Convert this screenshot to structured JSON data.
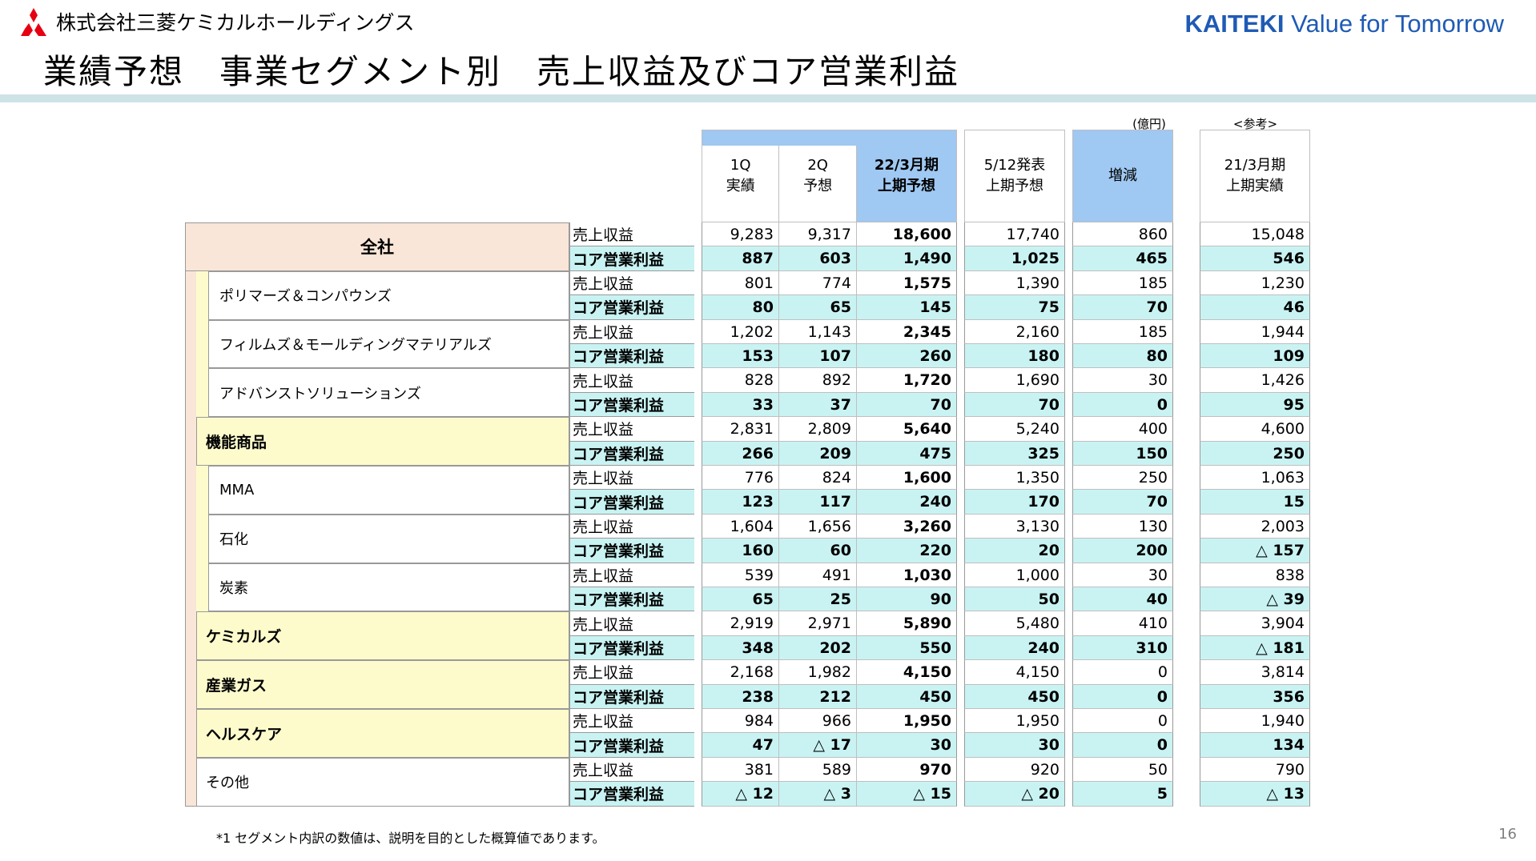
{
  "header": {
    "company": "株式会社三菱ケミカルホールディングス",
    "brand_bold": "KAITEKI",
    "brand_rest": " Value for Tomorrow",
    "title": "業績予想　事業セグメント別　売上収益及びコア営業利益"
  },
  "table": {
    "unit_note": "(億円)",
    "reference_note": "<参考>",
    "columns": [
      {
        "line1": "1Q",
        "line2": "実績"
      },
      {
        "line1": "2Q",
        "line2": "予想"
      },
      {
        "line1": "22/3月期",
        "line2": "上期予想"
      },
      {
        "line1": "5/12発表",
        "line2": "上期予想"
      },
      {
        "line1": "増減",
        "line2": ""
      },
      {
        "line1": "21/3月期",
        "line2": "上期実績"
      }
    ],
    "row_labels": {
      "revenue": "売上収益",
      "core": "コア営業利益"
    },
    "segments": [
      {
        "name": "全社",
        "revenue": [
          "9,283",
          "9,317",
          "18,600",
          "17,740",
          "860",
          "15,048"
        ],
        "core": [
          "887",
          "603",
          "1,490",
          "1,025",
          "465",
          "546"
        ]
      },
      {
        "name": "ポリマーズ＆コンパウンズ",
        "revenue": [
          "801",
          "774",
          "1,575",
          "1,390",
          "185",
          "1,230"
        ],
        "core": [
          "80",
          "65",
          "145",
          "75",
          "70",
          "46"
        ]
      },
      {
        "name": "フィルムズ＆モールディングマテリアルズ",
        "revenue": [
          "1,202",
          "1,143",
          "2,345",
          "2,160",
          "185",
          "1,944"
        ],
        "core": [
          "153",
          "107",
          "260",
          "180",
          "80",
          "109"
        ]
      },
      {
        "name": "アドバンストソリューションズ",
        "revenue": [
          "828",
          "892",
          "1,720",
          "1,690",
          "30",
          "1,426"
        ],
        "core": [
          "33",
          "37",
          "70",
          "70",
          "0",
          "95"
        ]
      },
      {
        "name": "機能商品",
        "revenue": [
          "2,831",
          "2,809",
          "5,640",
          "5,240",
          "400",
          "4,600"
        ],
        "core": [
          "266",
          "209",
          "475",
          "325",
          "150",
          "250"
        ]
      },
      {
        "name": "MMA",
        "revenue": [
          "776",
          "824",
          "1,600",
          "1,350",
          "250",
          "1,063"
        ],
        "core": [
          "123",
          "117",
          "240",
          "170",
          "70",
          "15"
        ]
      },
      {
        "name": "石化",
        "revenue": [
          "1,604",
          "1,656",
          "3,260",
          "3,130",
          "130",
          "2,003"
        ],
        "core": [
          "160",
          "60",
          "220",
          "20",
          "200",
          "△ 157"
        ]
      },
      {
        "name": "炭素",
        "revenue": [
          "539",
          "491",
          "1,030",
          "1,000",
          "30",
          "838"
        ],
        "core": [
          "65",
          "25",
          "90",
          "50",
          "40",
          "△ 39"
        ]
      },
      {
        "name": "ケミカルズ",
        "revenue": [
          "2,919",
          "2,971",
          "5,890",
          "5,480",
          "410",
          "3,904"
        ],
        "core": [
          "348",
          "202",
          "550",
          "240",
          "310",
          "△ 181"
        ]
      },
      {
        "name": "産業ガス",
        "revenue": [
          "2,168",
          "1,982",
          "4,150",
          "4,150",
          "0",
          "3,814"
        ],
        "core": [
          "238",
          "212",
          "450",
          "450",
          "0",
          "356"
        ]
      },
      {
        "name": "ヘルスケア",
        "revenue": [
          "984",
          "966",
          "1,950",
          "1,950",
          "0",
          "1,940"
        ],
        "core": [
          "47",
          "△ 17",
          "30",
          "30",
          "0",
          "134"
        ]
      },
      {
        "name": "その他",
        "revenue": [
          "381",
          "589",
          "970",
          "920",
          "50",
          "790"
        ],
        "core": [
          "△ 12",
          "△ 3",
          "△ 15",
          "△ 20",
          "5",
          "△ 13"
        ]
      }
    ]
  },
  "footnote": "*1 セグメント内訳の数値は、説明を目的とした概算値であります。",
  "page_number": "16",
  "colors": {
    "brand": "#1f5bb5",
    "header_blue": "#9fc8f2",
    "cyan_row": "#c9f3f3",
    "total_band": "#f9e6d8",
    "segment_band": "#fdfbcc",
    "title_band": "#cde3e6"
  }
}
